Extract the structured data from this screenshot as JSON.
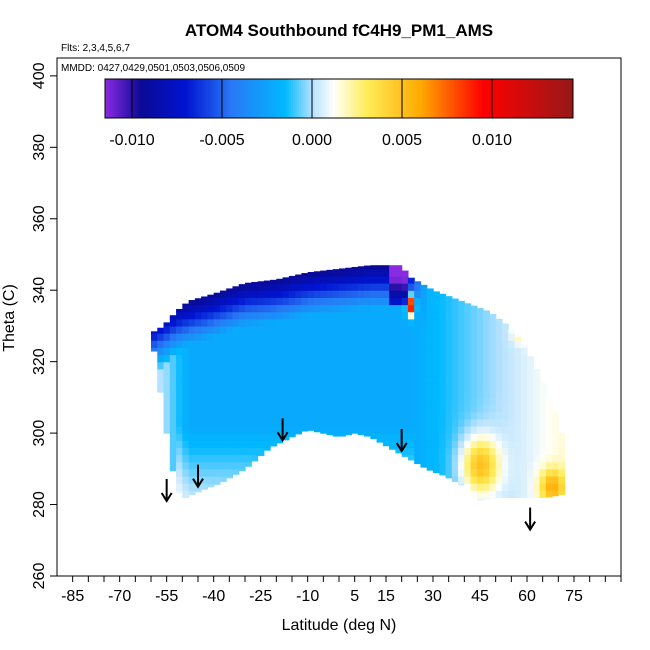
{
  "chart_data": {
    "type": "heatmap",
    "title": "ATOM4 Southbound fC4H9_PM1_AMS",
    "flights_label": "Flts: 2,3,4,5,6,7",
    "dates_label": "MMDD: 0427,0429,0501,0503,0506,0509",
    "xlabel": "Latitude (deg N)",
    "ylabel": "Theta (C)",
    "xlim": [
      -90,
      90
    ],
    "ylim": [
      260,
      405
    ],
    "x_ticks": [
      -85,
      -70,
      -55,
      -40,
      -25,
      -10,
      5,
      15,
      30,
      45,
      60,
      75
    ],
    "y_ticks": [
      260,
      280,
      300,
      320,
      340,
      360,
      380,
      400
    ],
    "colorbar": {
      "min": -0.0115,
      "max": 0.0145,
      "ticks": [
        -0.01,
        -0.005,
        0.0,
        0.005,
        0.01
      ],
      "tick_labels": [
        "-0.010",
        "-0.005",
        "0.000",
        "0.005",
        "0.010"
      ]
    },
    "field": {
      "lat_range": [
        -60,
        72
      ],
      "upper_boundary": [
        [
          -60,
          328
        ],
        [
          -56,
          330
        ],
        [
          -52,
          334
        ],
        [
          -48,
          337
        ],
        [
          -40,
          339
        ],
        [
          -30,
          342
        ],
        [
          -20,
          343
        ],
        [
          -10,
          345
        ],
        [
          0,
          346
        ],
        [
          10,
          347
        ],
        [
          20,
          347
        ],
        [
          22,
          344
        ],
        [
          26,
          342
        ],
        [
          30,
          340
        ],
        [
          36,
          338
        ],
        [
          42,
          336
        ],
        [
          48,
          334
        ],
        [
          54,
          330
        ],
        [
          58,
          326
        ],
        [
          62,
          320
        ],
        [
          66,
          312
        ],
        [
          70,
          304
        ],
        [
          72,
          296
        ],
        [
          72,
          283
        ]
      ],
      "lower_boundary": [
        [
          -60,
          328
        ],
        [
          -58,
          318
        ],
        [
          -56,
          305
        ],
        [
          -54,
          295
        ],
        [
          -52,
          284
        ],
        [
          -49,
          282
        ],
        [
          -44,
          284
        ],
        [
          -38,
          286
        ],
        [
          -30,
          290
        ],
        [
          -22,
          296
        ],
        [
          -15,
          299
        ],
        [
          -10,
          301
        ],
        [
          -5,
          300
        ],
        [
          0,
          299
        ],
        [
          5,
          300
        ],
        [
          10,
          299
        ],
        [
          16,
          296
        ],
        [
          22,
          293
        ],
        [
          28,
          290
        ],
        [
          34,
          288
        ],
        [
          40,
          285
        ],
        [
          44,
          281
        ],
        [
          50,
          282
        ],
        [
          56,
          282
        ],
        [
          62,
          282
        ],
        [
          66,
          282
        ],
        [
          72,
          283
        ]
      ]
    },
    "observation_markers": [
      {
        "lat": -55,
        "theta": 281
      },
      {
        "lat": -45,
        "theta": 285
      },
      {
        "lat": -18,
        "theta": 298
      },
      {
        "lat": 20,
        "theta": 295
      },
      {
        "lat": 61,
        "theta": 273
      }
    ]
  }
}
